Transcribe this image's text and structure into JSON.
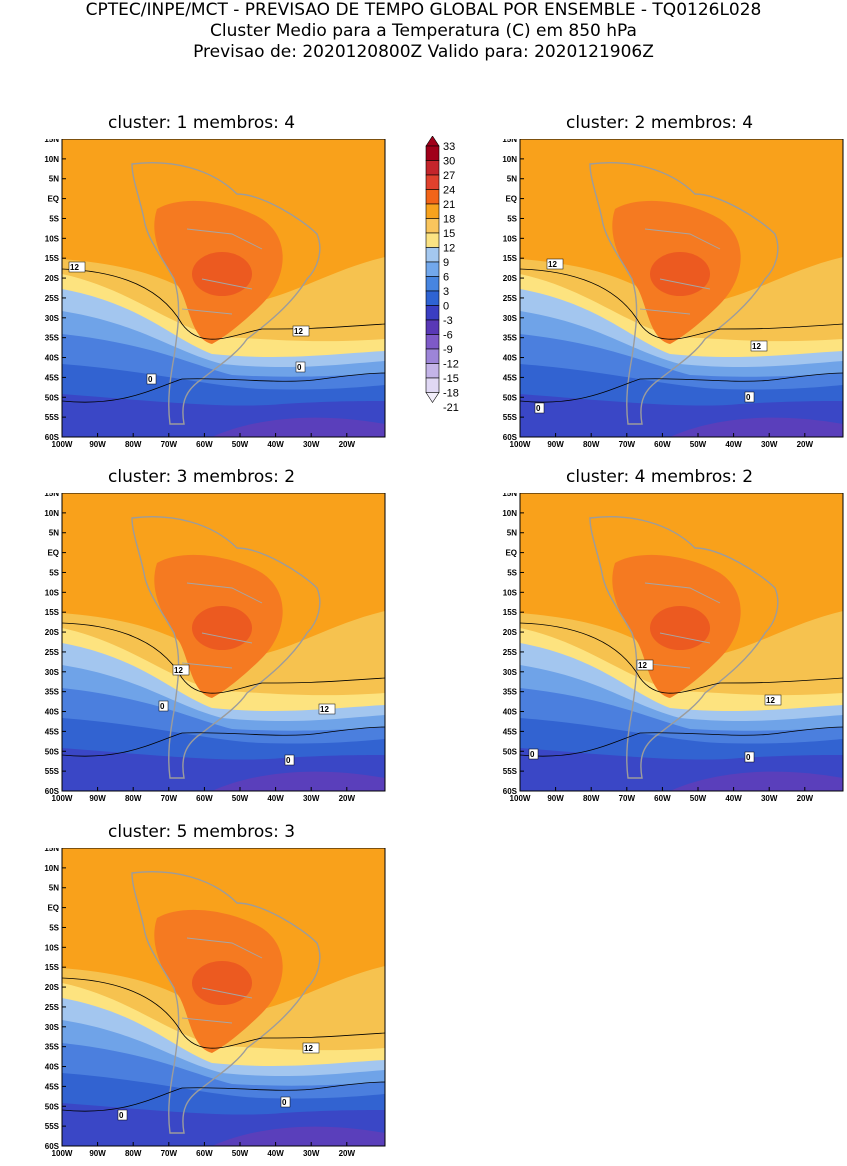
{
  "header": {
    "line1": "CPTEC/INPE/MCT - PREVISAO DE TEMPO GLOBAL POR ENSEMBLE - TQ0126L028",
    "line2": "Cluster Medio para a Temperatura (C) em 850 hPa",
    "line3": "Previsao de: 2020120800Z    Valido para: 2020121906Z"
  },
  "lat_labels": [
    "15N",
    "10N",
    "5N",
    "EQ",
    "5S",
    "10S",
    "15S",
    "20S",
    "25S",
    "30S",
    "35S",
    "40S",
    "45S",
    "50S",
    "55S",
    "60S"
  ],
  "lon_labels": [
    "100W",
    "90W",
    "80W",
    "70W",
    "60W",
    "50W",
    "40W",
    "30W",
    "20W"
  ],
  "panels": [
    {
      "title": "cluster: 1   membros: 4",
      "contours": [
        "12",
        "12",
        "0",
        "0"
      ]
    },
    {
      "title": "cluster: 2   membros: 4",
      "contours": [
        "12",
        "12",
        "0",
        "0"
      ]
    },
    {
      "title": "cluster: 3   membros: 2",
      "contours": [
        "12",
        "12",
        "0",
        "0"
      ]
    },
    {
      "title": "cluster: 4   membros: 2",
      "contours": [
        "12",
        "12",
        "0",
        "0"
      ]
    },
    {
      "title": "cluster: 5   membros: 3",
      "contours": [
        "12",
        "0",
        "0"
      ]
    }
  ],
  "colorbar": {
    "labels": [
      "33",
      "30",
      "27",
      "24",
      "21",
      "18",
      "15",
      "12",
      "9",
      "6",
      "3",
      "0",
      "-3",
      "-6",
      "-9",
      "-12",
      "-15",
      "-18",
      "-21"
    ],
    "colors": [
      "#a0001a",
      "#c4252b",
      "#e0412d",
      "#f26418",
      "#f7a21d",
      "#f9c55d",
      "#fbe383",
      "#a4c8f0",
      "#72a8ec",
      "#4785e0",
      "#2e63d3",
      "#3a3ec2",
      "#5938b6",
      "#7e5ac8",
      "#9d85d8",
      "#c4b4e8",
      "#e0d8f4"
    ]
  }
}
